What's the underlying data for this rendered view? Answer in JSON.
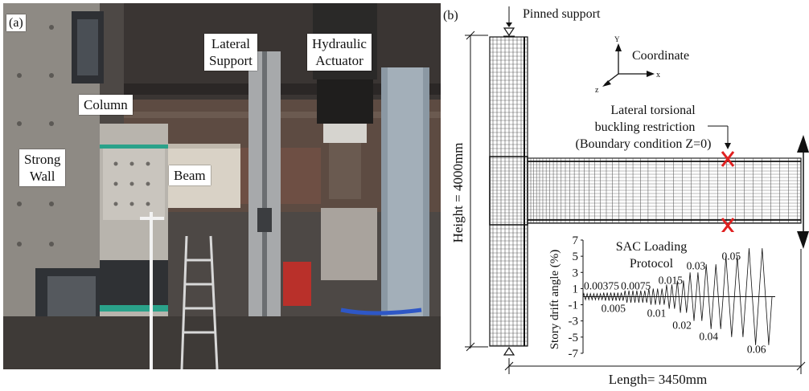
{
  "panel_a": {
    "label": "(a)",
    "labels": {
      "column": "Column",
      "strong_wall_1": "Strong",
      "strong_wall_2": "Wall",
      "beam": "Beam",
      "lateral_support_1": "Lateral",
      "lateral_support_2": "Support",
      "hydraulic_actuator_1": "Hydraulic",
      "hydraulic_actuator_2": "Actuator"
    }
  },
  "panel_b": {
    "label": "(b)",
    "pinned_support": "Pinned support",
    "coordinate": "Coordinate",
    "axis_x": "x",
    "axis_y": "Y",
    "axis_z": "z",
    "restriction_1": "Lateral torsional",
    "restriction_2": "buckling restriction",
    "restriction_3": "(Boundary condition Z=0)",
    "height": "Height = 4000mm",
    "length": "Length= 3450mm"
  },
  "chart_data": {
    "type": "line",
    "title": "SAC Loading Protocol",
    "title_line1": "SAC Loading",
    "title_line2": "Protocol",
    "ylabel": "Story drift angle (%)",
    "xlabel": "",
    "ylim": [
      -7,
      7
    ],
    "yticks": [
      "7",
      "5",
      "3",
      "1",
      "-1",
      "-3",
      "-5",
      "-7"
    ],
    "ytick_values": [
      7,
      5,
      3,
      1,
      -1,
      -3,
      -5,
      -7
    ],
    "steps": [
      {
        "amplitude": 0.375,
        "cycles": 6,
        "label": "0.00375"
      },
      {
        "amplitude": 0.5,
        "cycles": 6,
        "label": "0.005"
      },
      {
        "amplitude": 0.75,
        "cycles": 6,
        "label": "0.0075"
      },
      {
        "amplitude": 1.0,
        "cycles": 4,
        "label": "0.01"
      },
      {
        "amplitude": 1.5,
        "cycles": 2,
        "label": "0.015"
      },
      {
        "amplitude": 2.0,
        "cycles": 2,
        "label": "0.02"
      },
      {
        "amplitude": 3.0,
        "cycles": 2,
        "label": "0.03"
      },
      {
        "amplitude": 4.0,
        "cycles": 2,
        "label": "0.04"
      },
      {
        "amplitude": 5.0,
        "cycles": 2,
        "label": "0.05"
      },
      {
        "amplitude": 6.0,
        "cycles": 2,
        "label": "0.06"
      }
    ]
  },
  "colors": {
    "marker": "#e02020",
    "photo_wall": "#8e8a84",
    "beam": "#d9d2c6",
    "line": "#111111"
  }
}
